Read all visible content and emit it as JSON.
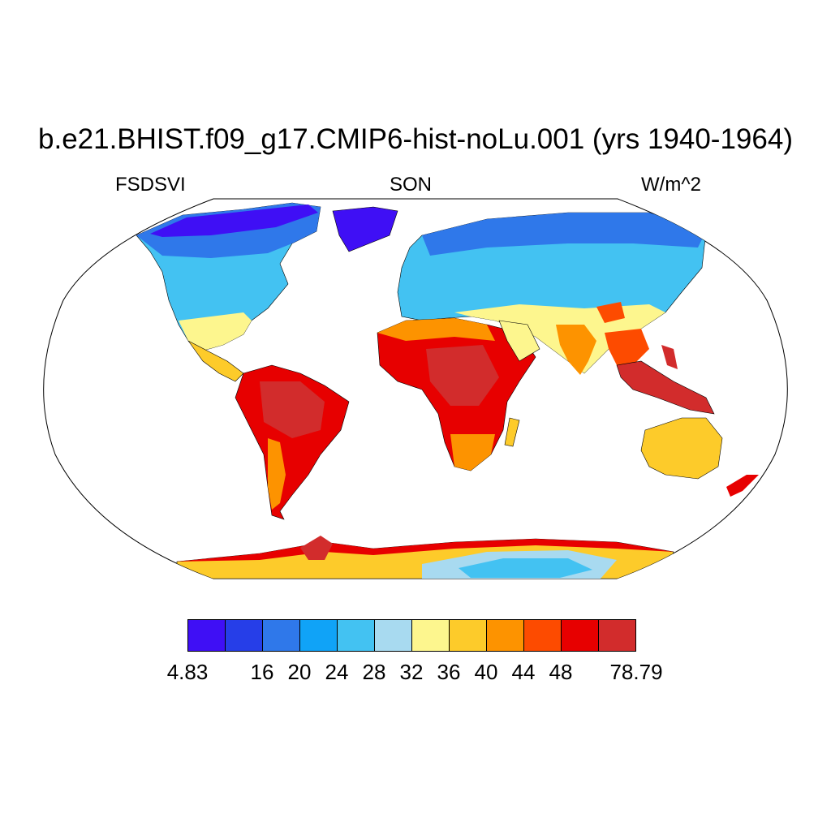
{
  "title": "b.e21.BHIST.f09_g17.CMIP6-hist-noLu.001 (yrs 1940-1964)",
  "variable": "FSDSVI",
  "season": "SON",
  "units": "W/m^2",
  "map": {
    "projection": "Robinson",
    "region": "global",
    "ocean_fill": "#ffffff"
  },
  "colorbar": {
    "colors": [
      "#3f0ff5",
      "#263ee8",
      "#2f78ea",
      "#10a3f7",
      "#43c2f2",
      "#a8daf0",
      "#fdf68e",
      "#fdcb2a",
      "#fd9300",
      "#fd4b00",
      "#e70000",
      "#d22c2c"
    ],
    "labels": [
      "4.83",
      "16",
      "20",
      "24",
      "28",
      "32",
      "36",
      "40",
      "44",
      "48",
      "78.79"
    ]
  }
}
